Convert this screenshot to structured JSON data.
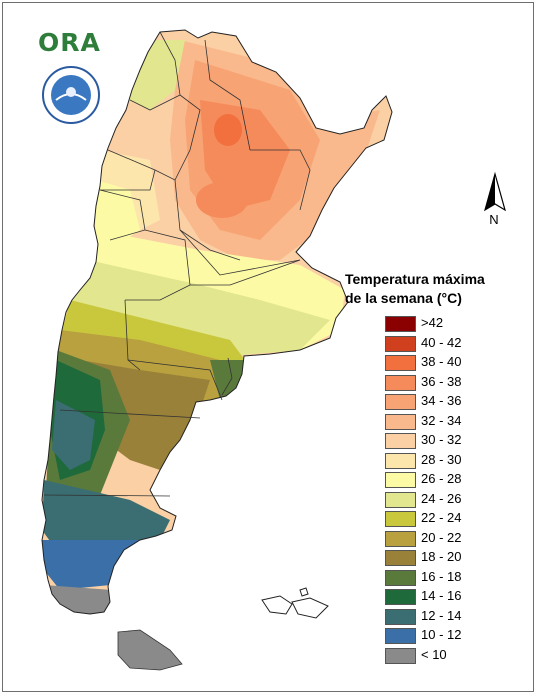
{
  "header": {
    "logo_text": "ORA",
    "seal_icon": "servicio-meteorologico-nacional-seal"
  },
  "north_arrow": {
    "label": "N",
    "icon": "north-arrow-icon"
  },
  "legend": {
    "title_line1": "Temperatura máxima",
    "title_line2": "de la semana (°C)",
    "items": [
      {
        "label": ">42",
        "color": "#8b0000"
      },
      {
        "label": "40 - 42",
        "color": "#d0401e"
      },
      {
        "label": "38 - 40",
        "color": "#f2703e"
      },
      {
        "label": "36 - 38",
        "color": "#f58a5a"
      },
      {
        "label": "34 - 36",
        "color": "#f7a374"
      },
      {
        "label": "32 - 34",
        "color": "#f9b98c"
      },
      {
        "label": "30 - 32",
        "color": "#fbd0a5"
      },
      {
        "label": "28 - 30",
        "color": "#fde6ab"
      },
      {
        "label": "26 - 28",
        "color": "#fdfaa6"
      },
      {
        "label": "24 - 26",
        "color": "#e2e68e"
      },
      {
        "label": "22 - 24",
        "color": "#c9c73c"
      },
      {
        "label": "20 - 22",
        "color": "#b8a13e"
      },
      {
        "label": "18 - 20",
        "color": "#9a8139"
      },
      {
        "label": "16 - 18",
        "color": "#5a7a3c"
      },
      {
        "label": "14 - 16",
        "color": "#1f6a3a"
      },
      {
        "label": "12 - 14",
        "color": "#3a6e72"
      },
      {
        "label": "10 - 12",
        "color": "#3a6fa8"
      },
      {
        "label": "< 10",
        "color": "#8a8a8a"
      }
    ]
  }
}
